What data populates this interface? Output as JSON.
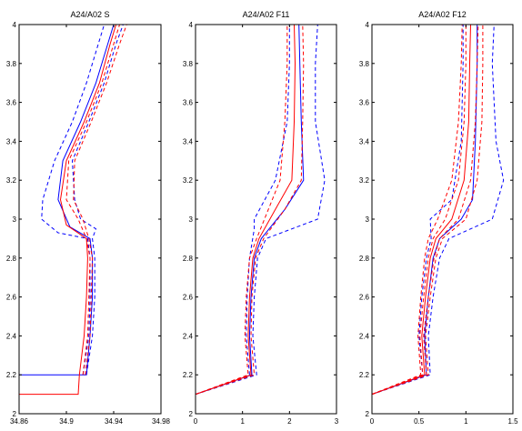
{
  "chart_data": [
    {
      "type": "line",
      "title": "A24/A02 S",
      "xlabel": "",
      "ylabel": "",
      "xlim": [
        34.86,
        34.98
      ],
      "ylim": [
        2,
        4
      ],
      "xticks": [
        "34.86",
        "34.9",
        "34.94",
        "34.98"
      ],
      "yticks": [
        "2",
        "2.2",
        "2.4",
        "2.6",
        "2.8",
        "3",
        "3.2",
        "3.4",
        "3.6",
        "3.8",
        "4"
      ],
      "grid": false,
      "series": [
        {
          "color": "#0000ff",
          "style": "solid",
          "points": [
            [
              34.86,
              2.2
            ],
            [
              34.913,
              2.2
            ],
            [
              34.917,
              2.2
            ],
            [
              34.92,
              2.4
            ],
            [
              34.922,
              2.6
            ],
            [
              34.922,
              2.8
            ],
            [
              34.92,
              2.9
            ],
            [
              34.903,
              2.96
            ],
            [
              34.893,
              3.1
            ],
            [
              34.897,
              3.3
            ],
            [
              34.912,
              3.5
            ],
            [
              34.925,
              3.7
            ],
            [
              34.935,
              3.9
            ],
            [
              34.94,
              4.0
            ]
          ]
        },
        {
          "color": "#0000ff",
          "style": "dashed",
          "points": [
            [
              34.914,
              2.2
            ],
            [
              34.919,
              2.4
            ],
            [
              34.92,
              2.6
            ],
            [
              34.92,
              2.8
            ],
            [
              34.918,
              2.9
            ],
            [
              34.893,
              2.93
            ],
            [
              34.879,
              3.0
            ],
            [
              34.88,
              3.1
            ],
            [
              34.89,
              3.3
            ],
            [
              34.905,
              3.5
            ],
            [
              34.917,
              3.7
            ],
            [
              34.927,
              3.9
            ],
            [
              34.932,
              4.0
            ]
          ]
        },
        {
          "color": "#0000ff",
          "style": "dashed",
          "points": [
            [
              34.917,
              2.2
            ],
            [
              34.922,
              2.4
            ],
            [
              34.924,
              2.6
            ],
            [
              34.924,
              2.8
            ],
            [
              34.922,
              2.9
            ],
            [
              34.925,
              2.95
            ],
            [
              34.912,
              3.0
            ],
            [
              34.907,
              3.1
            ],
            [
              34.905,
              3.3
            ],
            [
              34.919,
              3.5
            ],
            [
              34.932,
              3.7
            ],
            [
              34.942,
              3.9
            ],
            [
              34.948,
              4.0
            ]
          ]
        },
        {
          "color": "#ff0000",
          "style": "solid",
          "points": [
            [
              34.86,
              2.1
            ],
            [
              34.91,
              2.1
            ],
            [
              34.911,
              2.2
            ],
            [
              34.915,
              2.4
            ],
            [
              34.917,
              2.6
            ],
            [
              34.918,
              2.8
            ],
            [
              34.917,
              2.9
            ],
            [
              34.9,
              2.97
            ],
            [
              34.895,
              3.1
            ],
            [
              34.9,
              3.3
            ],
            [
              34.915,
              3.5
            ],
            [
              34.928,
              3.7
            ],
            [
              34.937,
              3.9
            ],
            [
              34.942,
              4.0
            ]
          ]
        },
        {
          "color": "#ff0000",
          "style": "dashed",
          "points": [
            [
              34.914,
              2.2
            ],
            [
              34.918,
              2.4
            ],
            [
              34.919,
              2.6
            ],
            [
              34.92,
              2.8
            ],
            [
              34.917,
              2.9
            ],
            [
              34.91,
              3.0
            ],
            [
              34.9,
              3.1
            ],
            [
              34.902,
              3.3
            ],
            [
              34.917,
              3.5
            ],
            [
              34.93,
              3.7
            ],
            [
              34.94,
              3.9
            ],
            [
              34.945,
              4.0
            ]
          ]
        },
        {
          "color": "#ff0000",
          "style": "dashed",
          "points": [
            [
              34.916,
              2.2
            ],
            [
              34.92,
              2.4
            ],
            [
              34.921,
              2.6
            ],
            [
              34.922,
              2.8
            ],
            [
              34.919,
              2.9
            ],
            [
              34.914,
              3.0
            ],
            [
              34.906,
              3.1
            ],
            [
              34.907,
              3.3
            ],
            [
              34.921,
              3.5
            ],
            [
              34.934,
              3.7
            ],
            [
              34.945,
              3.9
            ],
            [
              34.951,
              4.0
            ]
          ]
        }
      ]
    },
    {
      "type": "line",
      "title": "A24/A02 F11",
      "xlabel": "",
      "ylabel": "",
      "xlim": [
        0,
        3
      ],
      "ylim": [
        2,
        4
      ],
      "xticks": [
        "0",
        "1",
        "2",
        "3"
      ],
      "yticks": [
        "2",
        "2.2",
        "2.4",
        "2.6",
        "2.8",
        "3",
        "3.2",
        "3.4",
        "3.6",
        "3.8",
        "4"
      ],
      "grid": false,
      "series": [
        {
          "color": "#0000ff",
          "style": "solid",
          "points": [
            [
              0,
              2.1
            ],
            [
              1.2,
              2.2
            ],
            [
              1.15,
              2.4
            ],
            [
              1.18,
              2.6
            ],
            [
              1.25,
              2.8
            ],
            [
              1.4,
              2.9
            ],
            [
              1.9,
              3.05
            ],
            [
              2.3,
              3.2
            ],
            [
              2.25,
              3.5
            ],
            [
              2.22,
              3.8
            ],
            [
              2.2,
              4.0
            ]
          ]
        },
        {
          "color": "#0000ff",
          "style": "dashed",
          "points": [
            [
              0,
              2.1
            ],
            [
              1.15,
              2.2
            ],
            [
              1.08,
              2.4
            ],
            [
              1.1,
              2.6
            ],
            [
              1.15,
              2.8
            ],
            [
              1.25,
              2.95
            ],
            [
              1.25,
              3.0
            ],
            [
              1.7,
              3.2
            ],
            [
              1.95,
              3.5
            ],
            [
              2.0,
              3.8
            ],
            [
              2.0,
              4.0
            ]
          ]
        },
        {
          "color": "#0000ff",
          "style": "dashed",
          "points": [
            [
              0,
              2.1
            ],
            [
              1.3,
              2.2
            ],
            [
              1.22,
              2.4
            ],
            [
              1.25,
              2.6
            ],
            [
              1.32,
              2.8
            ],
            [
              1.5,
              2.9
            ],
            [
              2.6,
              3.0
            ],
            [
              2.75,
              3.2
            ],
            [
              2.55,
              3.5
            ],
            [
              2.55,
              3.8
            ],
            [
              2.6,
              4.0
            ]
          ]
        },
        {
          "color": "#ff0000",
          "style": "solid",
          "points": [
            [
              0,
              2.1
            ],
            [
              1.18,
              2.2
            ],
            [
              1.12,
              2.4
            ],
            [
              1.15,
              2.6
            ],
            [
              1.22,
              2.8
            ],
            [
              1.35,
              2.9
            ],
            [
              1.7,
              3.05
            ],
            [
              2.05,
              3.2
            ],
            [
              2.1,
              3.5
            ],
            [
              2.12,
              3.8
            ],
            [
              2.1,
              4.0
            ]
          ]
        },
        {
          "color": "#ff0000",
          "style": "dashed",
          "points": [
            [
              0,
              2.1
            ],
            [
              1.12,
              2.2
            ],
            [
              1.05,
              2.4
            ],
            [
              1.08,
              2.6
            ],
            [
              1.15,
              2.8
            ],
            [
              1.3,
              2.9
            ],
            [
              1.55,
              3.05
            ],
            [
              1.8,
              3.2
            ],
            [
              1.9,
              3.5
            ],
            [
              1.95,
              3.8
            ],
            [
              1.95,
              4.0
            ]
          ]
        },
        {
          "color": "#ff0000",
          "style": "dashed",
          "points": [
            [
              0,
              2.1
            ],
            [
              1.25,
              2.2
            ],
            [
              1.18,
              2.4
            ],
            [
              1.2,
              2.6
            ],
            [
              1.28,
              2.8
            ],
            [
              1.45,
              2.9
            ],
            [
              1.9,
              3.05
            ],
            [
              2.25,
              3.2
            ],
            [
              2.28,
              3.5
            ],
            [
              2.3,
              3.8
            ],
            [
              2.28,
              4.0
            ]
          ]
        }
      ]
    },
    {
      "type": "line",
      "title": "A24/A02 F12",
      "xlabel": "",
      "ylabel": "",
      "xlim": [
        0,
        1.5
      ],
      "ylim": [
        2,
        4
      ],
      "xticks": [
        "0",
        "0.5",
        "1",
        "1.5"
      ],
      "yticks": [
        "2",
        "2.2",
        "2.4",
        "2.6",
        "2.8",
        "3",
        "3.2",
        "3.4",
        "3.6",
        "3.8",
        "4"
      ],
      "grid": false,
      "series": [
        {
          "color": "#0000ff",
          "style": "solid",
          "points": [
            [
              0,
              2.1
            ],
            [
              0.58,
              2.2
            ],
            [
              0.56,
              2.4
            ],
            [
              0.6,
              2.6
            ],
            [
              0.65,
              2.8
            ],
            [
              0.72,
              2.9
            ],
            [
              0.95,
              3.0
            ],
            [
              1.07,
              3.1
            ],
            [
              1.1,
              3.4
            ],
            [
              1.12,
              3.8
            ],
            [
              1.12,
              4.0
            ]
          ]
        },
        {
          "color": "#0000ff",
          "style": "dashed",
          "points": [
            [
              0,
              2.1
            ],
            [
              0.54,
              2.2
            ],
            [
              0.5,
              2.4
            ],
            [
              0.53,
              2.6
            ],
            [
              0.58,
              2.8
            ],
            [
              0.63,
              2.9
            ],
            [
              0.62,
              3.0
            ],
            [
              0.85,
              3.1
            ],
            [
              0.95,
              3.4
            ],
            [
              0.97,
              3.8
            ],
            [
              0.97,
              4.0
            ]
          ]
        },
        {
          "color": "#0000ff",
          "style": "dashed",
          "points": [
            [
              0,
              2.1
            ],
            [
              0.62,
              2.2
            ],
            [
              0.6,
              2.4
            ],
            [
              0.65,
              2.6
            ],
            [
              0.72,
              2.8
            ],
            [
              0.82,
              2.9
            ],
            [
              1.28,
              3.0
            ],
            [
              1.4,
              3.2
            ],
            [
              1.32,
              3.4
            ],
            [
              1.28,
              3.8
            ],
            [
              1.3,
              4.0
            ]
          ]
        },
        {
          "color": "#ff0000",
          "style": "solid",
          "points": [
            [
              0,
              2.1
            ],
            [
              0.56,
              2.2
            ],
            [
              0.53,
              2.4
            ],
            [
              0.57,
              2.6
            ],
            [
              0.62,
              2.8
            ],
            [
              0.68,
              2.9
            ],
            [
              0.85,
              3.0
            ],
            [
              0.98,
              3.2
            ],
            [
              1.03,
              3.5
            ],
            [
              1.04,
              3.8
            ],
            [
              1.05,
              4.0
            ]
          ]
        },
        {
          "color": "#ff0000",
          "style": "dashed",
          "points": [
            [
              0,
              2.1
            ],
            [
              0.52,
              2.2
            ],
            [
              0.49,
              2.4
            ],
            [
              0.52,
              2.6
            ],
            [
              0.56,
              2.8
            ],
            [
              0.6,
              2.9
            ],
            [
              0.7,
              3.0
            ],
            [
              0.85,
              3.2
            ],
            [
              0.92,
              3.5
            ],
            [
              0.95,
              3.8
            ],
            [
              0.96,
              4.0
            ]
          ]
        },
        {
          "color": "#ff0000",
          "style": "dashed",
          "points": [
            [
              0,
              2.1
            ],
            [
              0.54,
              2.2
            ],
            [
              0.51,
              2.4
            ],
            [
              0.55,
              2.6
            ],
            [
              0.6,
              2.8
            ],
            [
              0.65,
              2.9
            ],
            [
              0.78,
              3.0
            ],
            [
              0.92,
              3.2
            ],
            [
              0.98,
              3.5
            ],
            [
              1.0,
              3.8
            ],
            [
              1.0,
              4.0
            ]
          ]
        },
        {
          "color": "#ff0000",
          "style": "dashed",
          "points": [
            [
              0,
              2.1
            ],
            [
              0.58,
              2.2
            ],
            [
              0.55,
              2.4
            ],
            [
              0.6,
              2.6
            ],
            [
              0.66,
              2.8
            ],
            [
              0.72,
              2.9
            ],
            [
              0.92,
              3.0
            ],
            [
              1.05,
              3.2
            ],
            [
              1.1,
              3.5
            ],
            [
              1.12,
              3.8
            ],
            [
              1.13,
              4.0
            ]
          ]
        },
        {
          "color": "#ff0000",
          "style": "dashed",
          "points": [
            [
              0,
              2.1
            ],
            [
              0.6,
              2.2
            ],
            [
              0.57,
              2.4
            ],
            [
              0.62,
              2.6
            ],
            [
              0.68,
              2.8
            ],
            [
              0.75,
              2.9
            ],
            [
              1.0,
              3.0
            ],
            [
              1.12,
              3.2
            ],
            [
              1.17,
              3.5
            ],
            [
              1.18,
              3.8
            ],
            [
              1.18,
              4.0
            ]
          ]
        }
      ]
    }
  ]
}
